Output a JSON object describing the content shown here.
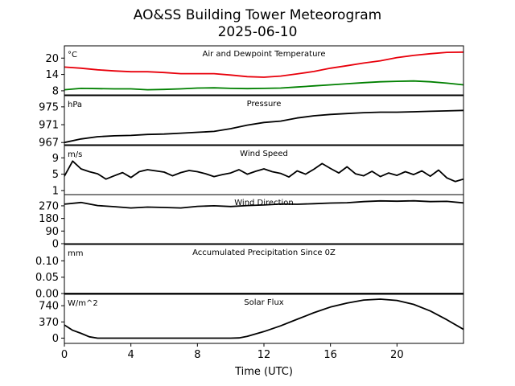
{
  "figure": {
    "title": "AO&SS Building Tower Meteorogram",
    "subtitle": "2025-06-10",
    "xlabel": "Time (UTC)"
  },
  "chart_data": {
    "type": "line",
    "x_axis": {
      "min": 0,
      "max": 24,
      "ticks": [
        0,
        4,
        8,
        12,
        16,
        20
      ]
    },
    "panels": [
      {
        "title": "Air and Dewpoint Temperature",
        "unit": "°C",
        "ylim": [
          6.5,
          24.5
        ],
        "yticks": [
          8,
          14,
          20
        ],
        "series": [
          {
            "color": "#e8000b",
            "x": [
              0,
              1,
              2,
              3,
              4,
              5,
              6,
              7,
              8,
              9,
              10,
              11,
              12,
              13,
              14,
              15,
              16,
              17,
              18,
              19,
              20,
              21,
              22,
              23,
              24
            ],
            "y": [
              16.7,
              16.3,
              15.7,
              15.3,
              15.0,
              15.0,
              14.7,
              14.3,
              14.3,
              14.3,
              13.8,
              13.2,
              13.0,
              13.4,
              14.2,
              15.1,
              16.3,
              17.2,
              18.2,
              19.0,
              20.2,
              21.0,
              21.6,
              22.1,
              22.2
            ]
          },
          {
            "color": "#008000",
            "x": [
              0,
              1,
              2,
              3,
              4,
              5,
              6,
              7,
              8,
              9,
              10,
              11,
              12,
              13,
              14,
              15,
              16,
              17,
              18,
              19,
              20,
              21,
              22,
              23,
              24
            ],
            "y": [
              8.4,
              8.9,
              8.8,
              8.7,
              8.7,
              8.4,
              8.5,
              8.7,
              9.0,
              9.1,
              8.9,
              8.8,
              8.9,
              9.0,
              9.4,
              9.8,
              10.2,
              10.6,
              11.0,
              11.3,
              11.5,
              11.6,
              11.3,
              10.8,
              10.2
            ]
          }
        ]
      },
      {
        "title": "Pressure",
        "unit": "hPa",
        "ylim": [
          966.5,
          977.5
        ],
        "yticks": [
          967,
          971,
          975
        ],
        "series": [
          {
            "color": "#000000",
            "x": [
              0,
              1,
              2,
              3,
              4,
              5,
              6,
              7,
              8,
              9,
              10,
              11,
              12,
              13,
              14,
              15,
              16,
              17,
              18,
              19,
              20,
              21,
              22,
              23,
              24
            ],
            "y": [
              967.0,
              967.8,
              968.3,
              968.5,
              968.6,
              968.8,
              968.9,
              969.1,
              969.3,
              969.5,
              970.1,
              970.9,
              971.5,
              971.8,
              972.5,
              973.0,
              973.3,
              973.5,
              973.7,
              973.8,
              973.8,
              973.9,
              974.0,
              974.1,
              974.2
            ]
          }
        ]
      },
      {
        "title": "Wind Speed",
        "unit": "m/s",
        "ylim": [
          0,
          12
        ],
        "yticks": [
          1,
          5,
          9
        ],
        "series": [
          {
            "color": "#000000",
            "x": [
              0,
              0.5,
              1,
              1.5,
              2,
              2.5,
              3,
              3.5,
              4,
              4.5,
              5,
              5.5,
              6,
              6.5,
              7,
              7.5,
              8,
              8.5,
              9,
              9.5,
              10,
              10.5,
              11,
              11.5,
              12,
              12.5,
              13,
              13.5,
              14,
              14.5,
              15,
              15.5,
              16,
              16.5,
              17,
              17.5,
              18,
              18.5,
              19,
              19.5,
              20,
              20.5,
              21,
              21.5,
              22,
              22.5,
              23,
              23.5,
              24
            ],
            "y": [
              4.5,
              8.2,
              6.3,
              5.6,
              5.1,
              3.8,
              4.6,
              5.4,
              4.2,
              5.6,
              6.1,
              5.8,
              5.5,
              4.6,
              5.4,
              5.9,
              5.6,
              5.1,
              4.4,
              4.9,
              5.3,
              6.1,
              5.0,
              5.7,
              6.3,
              5.6,
              5.2,
              4.3,
              5.8,
              5.0,
              6.2,
              7.6,
              6.4,
              5.3,
              6.8,
              5.1,
              4.6,
              5.7,
              4.4,
              5.3,
              4.7,
              5.6,
              4.9,
              5.8,
              4.5,
              6.0,
              4.1,
              3.2,
              3.8
            ]
          }
        ]
      },
      {
        "title": "Wind Direction",
        "unit": "",
        "ylim": [
          0,
          350
        ],
        "yticks": [
          0,
          90,
          180,
          270
        ],
        "series": [
          {
            "color": "#000000",
            "x": [
              0,
              1,
              2,
              3,
              4,
              5,
              6,
              7,
              8,
              9,
              10,
              11,
              12,
              13,
              14,
              15,
              16,
              17,
              18,
              19,
              20,
              21,
              22,
              23,
              24
            ],
            "y": [
              282,
              294,
              272,
              264,
              255,
              261,
              258,
              255,
              266,
              270,
              265,
              272,
              276,
              283,
              281,
              285,
              290,
              292,
              300,
              305,
              303,
              306,
              300,
              302,
              291
            ]
          }
        ]
      },
      {
        "title": "Accumulated Precipitation Since 0Z",
        "unit": "mm",
        "ylim": [
          0,
          0.15
        ],
        "yticks": [
          0.0,
          0.05,
          0.1
        ],
        "ytick_labels": [
          "0.00",
          "0.05",
          "0.10"
        ],
        "series": [
          {
            "color": "#000000",
            "x": [
              0,
              24
            ],
            "y": [
              0,
              0
            ]
          }
        ]
      },
      {
        "title": "Solar Flux",
        "unit": "W/m^2",
        "ylim": [
          -120,
          1000
        ],
        "yticks": [
          0,
          370,
          740
        ],
        "series": [
          {
            "color": "#000000",
            "x": [
              0,
              0.5,
              1,
              1.5,
              2,
              3,
              4,
              5,
              6,
              7,
              8,
              9,
              10,
              10.5,
              11,
              12,
              13,
              14,
              15,
              16,
              17,
              18,
              19,
              20,
              21,
              22,
              23,
              24
            ],
            "y": [
              300,
              180,
              110,
              30,
              0,
              0,
              0,
              0,
              0,
              0,
              0,
              0,
              0,
              5,
              40,
              150,
              280,
              430,
              580,
              710,
              800,
              870,
              890,
              860,
              770,
              620,
              420,
              200
            ]
          }
        ]
      }
    ]
  }
}
